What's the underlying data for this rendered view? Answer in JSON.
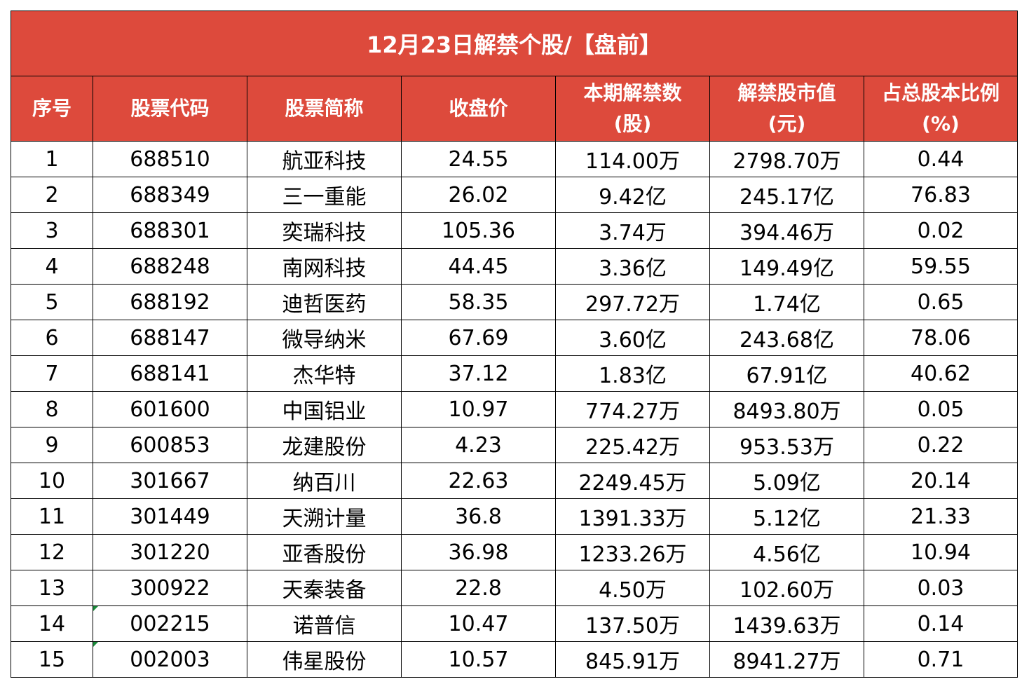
{
  "title": "12月23日解禁个股/【盘前】",
  "header_color": "#dd4a3c",
  "columns": [
    {
      "line1": "序号",
      "line2": ""
    },
    {
      "line1": "股票代码",
      "line2": ""
    },
    {
      "line1": "股票简称",
      "line2": ""
    },
    {
      "line1": "收盘价",
      "line2": ""
    },
    {
      "line1": "本期解禁数",
      "line2": "(股)"
    },
    {
      "line1": "解禁股市值",
      "line2": "(元)"
    },
    {
      "line1": "占总股本比例",
      "line2": "(%)"
    }
  ],
  "rows": [
    {
      "no": "1",
      "code": "688510",
      "name": "航亚科技",
      "close": "24.55",
      "shares": "114.00万",
      "value": "2798.70万",
      "ratio": "0.44",
      "flag": false
    },
    {
      "no": "2",
      "code": "688349",
      "name": "三一重能",
      "close": "26.02",
      "shares": "9.42亿",
      "value": "245.17亿",
      "ratio": "76.83",
      "flag": false
    },
    {
      "no": "3",
      "code": "688301",
      "name": "奕瑞科技",
      "close": "105.36",
      "shares": "3.74万",
      "value": "394.46万",
      "ratio": "0.02",
      "flag": false
    },
    {
      "no": "4",
      "code": "688248",
      "name": "南网科技",
      "close": "44.45",
      "shares": "3.36亿",
      "value": "149.49亿",
      "ratio": "59.55",
      "flag": false
    },
    {
      "no": "5",
      "code": "688192",
      "name": "迪哲医药",
      "close": "58.35",
      "shares": "297.72万",
      "value": "1.74亿",
      "ratio": "0.65",
      "flag": false
    },
    {
      "no": "6",
      "code": "688147",
      "name": "微导纳米",
      "close": "67.69",
      "shares": "3.60亿",
      "value": "243.68亿",
      "ratio": "78.06",
      "flag": false
    },
    {
      "no": "7",
      "code": "688141",
      "name": "杰华特",
      "close": "37.12",
      "shares": "1.83亿",
      "value": "67.91亿",
      "ratio": "40.62",
      "flag": false
    },
    {
      "no": "8",
      "code": "601600",
      "name": "中国铝业",
      "close": "10.97",
      "shares": "774.27万",
      "value": "8493.80万",
      "ratio": "0.05",
      "flag": false
    },
    {
      "no": "9",
      "code": "600853",
      "name": "龙建股份",
      "close": "4.23",
      "shares": "225.42万",
      "value": "953.53万",
      "ratio": "0.22",
      "flag": false
    },
    {
      "no": "10",
      "code": "301667",
      "name": "纳百川",
      "close": "22.63",
      "shares": "2249.45万",
      "value": "5.09亿",
      "ratio": "20.14",
      "flag": false
    },
    {
      "no": "11",
      "code": "301449",
      "name": "天溯计量",
      "close": "36.8",
      "shares": "1391.33万",
      "value": "5.12亿",
      "ratio": "21.33",
      "flag": false
    },
    {
      "no": "12",
      "code": "301220",
      "name": "亚香股份",
      "close": "36.98",
      "shares": "1233.26万",
      "value": "4.56亿",
      "ratio": "10.94",
      "flag": false
    },
    {
      "no": "13",
      "code": "300922",
      "name": "天秦装备",
      "close": "22.8",
      "shares": "4.50万",
      "value": "102.60万",
      "ratio": "0.03",
      "flag": false
    },
    {
      "no": "14",
      "code": "002215",
      "name": "诺普信",
      "close": "10.47",
      "shares": "137.50万",
      "value": "1439.63万",
      "ratio": "0.14",
      "flag": true
    },
    {
      "no": "15",
      "code": "002003",
      "name": "伟星股份",
      "close": "10.57",
      "shares": "845.91万",
      "value": "8941.27万",
      "ratio": "0.71",
      "flag": true
    }
  ]
}
